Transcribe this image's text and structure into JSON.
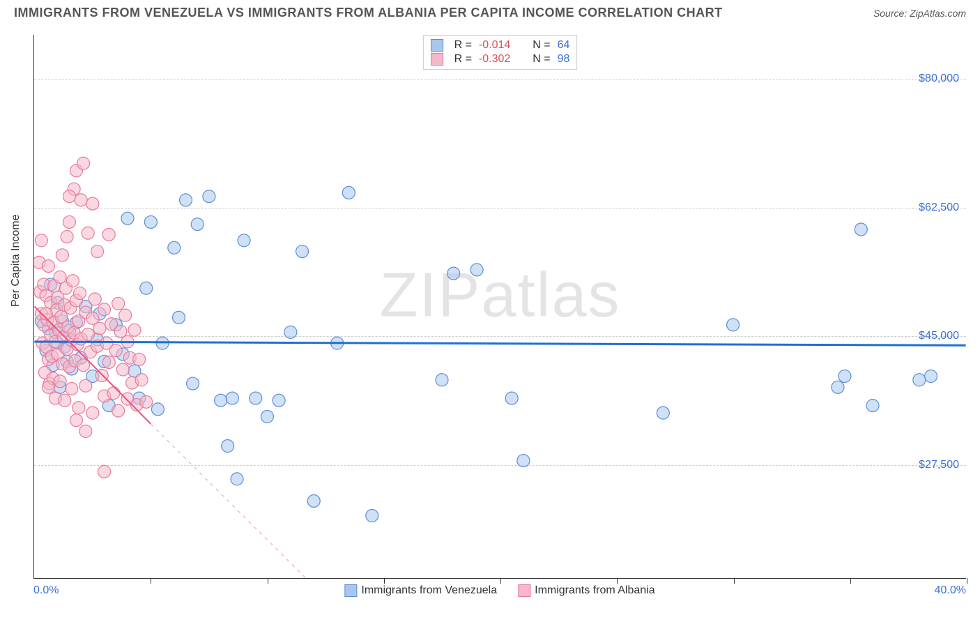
{
  "header": {
    "title": "IMMIGRANTS FROM VENEZUELA VS IMMIGRANTS FROM ALBANIA PER CAPITA INCOME CORRELATION CHART",
    "source": "Source: ZipAtlas.com"
  },
  "chart": {
    "type": "scatter",
    "ylabel": "Per Capita Income",
    "xlim": [
      0,
      40
    ],
    "x_ticks": [
      0,
      5,
      10,
      15,
      20,
      25,
      30,
      35,
      40
    ],
    "x_tick_labels": {
      "left": "0.0%",
      "right": "40.0%"
    },
    "ylim": [
      12000,
      86000
    ],
    "y_gridlines": [
      27500,
      45000,
      62500,
      80000
    ],
    "y_tick_labels": [
      "$27,500",
      "$45,000",
      "$62,500",
      "$80,000"
    ],
    "background_color": "#ffffff",
    "grid_color": "#cccccc",
    "axis_color": "#333333",
    "marker_radius": 9,
    "marker_opacity": 0.55,
    "series": [
      {
        "name": "Immigrants from Venezuela",
        "color_fill": "#a9c7ec",
        "color_stroke": "#5a8fd6",
        "trend": {
          "color": "#1f6fd6",
          "width": 3,
          "x1": 0,
          "y1": 44200,
          "x2": 40,
          "y2": 43700,
          "dash_extend": false
        },
        "R": "-0.014",
        "N": "64",
        "points": [
          [
            0.3,
            47000
          ],
          [
            0.5,
            43000
          ],
          [
            0.6,
            46000
          ],
          [
            0.7,
            52000
          ],
          [
            0.8,
            41000
          ],
          [
            0.9,
            45500
          ],
          [
            1.0,
            44000
          ],
          [
            1.1,
            38000
          ],
          [
            1.2,
            47000
          ],
          [
            1.3,
            43500
          ],
          [
            1.4,
            41500
          ],
          [
            1.5,
            45700
          ],
          [
            1.6,
            40500
          ],
          [
            1.8,
            46800
          ],
          [
            2.0,
            42000
          ],
          [
            2.2,
            49000
          ],
          [
            2.5,
            39500
          ],
          [
            2.7,
            44500
          ],
          [
            3.0,
            41500
          ],
          [
            3.2,
            35500
          ],
          [
            3.5,
            46500
          ],
          [
            3.8,
            42500
          ],
          [
            4.0,
            61000
          ],
          [
            4.3,
            40200
          ],
          [
            4.5,
            36500
          ],
          [
            4.8,
            51500
          ],
          [
            5.0,
            60500
          ],
          [
            5.3,
            35000
          ],
          [
            5.5,
            44000
          ],
          [
            6.0,
            57000
          ],
          [
            6.2,
            47500
          ],
          [
            6.5,
            63500
          ],
          [
            6.8,
            38500
          ],
          [
            7.0,
            60200
          ],
          [
            7.5,
            64000
          ],
          [
            8.0,
            36200
          ],
          [
            8.3,
            30000
          ],
          [
            8.5,
            36500
          ],
          [
            8.7,
            25500
          ],
          [
            9.0,
            58000
          ],
          [
            9.5,
            36500
          ],
          [
            10.0,
            34000
          ],
          [
            10.5,
            36200
          ],
          [
            11.0,
            45500
          ],
          [
            11.5,
            56500
          ],
          [
            12.0,
            22500
          ],
          [
            13.0,
            44000
          ],
          [
            13.5,
            64500
          ],
          [
            14.5,
            20500
          ],
          [
            17.5,
            39000
          ],
          [
            18.0,
            53500
          ],
          [
            19.0,
            54000
          ],
          [
            20.5,
            36500
          ],
          [
            21.0,
            28000
          ],
          [
            27.0,
            34500
          ],
          [
            30.0,
            46500
          ],
          [
            34.5,
            38000
          ],
          [
            34.8,
            39500
          ],
          [
            36.0,
            35500
          ],
          [
            35.5,
            59500
          ],
          [
            38.0,
            39000
          ],
          [
            38.5,
            39500
          ],
          [
            1.0,
            49500
          ],
          [
            2.8,
            48000
          ]
        ]
      },
      {
        "name": "Immigrants from Albania",
        "color_fill": "#f5b8c9",
        "color_stroke": "#e77a9a",
        "trend": {
          "color": "#e75480",
          "width": 2,
          "x1": 0,
          "y1": 49000,
          "x2": 5.0,
          "y2": 33000,
          "dash_extend": true,
          "dash_x2": 14.5,
          "dash_y2": 3000
        },
        "R": "-0.302",
        "N": "98",
        "points": [
          [
            0.2,
            55000
          ],
          [
            0.25,
            51000
          ],
          [
            0.3,
            48000
          ],
          [
            0.3,
            58000
          ],
          [
            0.35,
            44000
          ],
          [
            0.4,
            46500
          ],
          [
            0.4,
            52000
          ],
          [
            0.45,
            40000
          ],
          [
            0.5,
            43500
          ],
          [
            0.5,
            50500
          ],
          [
            0.55,
            47200
          ],
          [
            0.6,
            41800
          ],
          [
            0.6,
            54500
          ],
          [
            0.65,
            38500
          ],
          [
            0.7,
            45000
          ],
          [
            0.7,
            49500
          ],
          [
            0.75,
            42200
          ],
          [
            0.8,
            46800
          ],
          [
            0.8,
            39200
          ],
          [
            0.85,
            51800
          ],
          [
            0.9,
            44200
          ],
          [
            0.9,
            36500
          ],
          [
            0.95,
            48500
          ],
          [
            1.0,
            42500
          ],
          [
            1.0,
            50200
          ],
          [
            1.05,
            45800
          ],
          [
            1.1,
            38800
          ],
          [
            1.1,
            53000
          ],
          [
            1.15,
            47600
          ],
          [
            1.2,
            41200
          ],
          [
            1.2,
            56000
          ],
          [
            1.25,
            44800
          ],
          [
            1.3,
            49200
          ],
          [
            1.3,
            36200
          ],
          [
            1.35,
            51500
          ],
          [
            1.4,
            43200
          ],
          [
            1.4,
            58500
          ],
          [
            1.45,
            46200
          ],
          [
            1.5,
            40800
          ],
          [
            1.5,
            60500
          ],
          [
            1.55,
            48800
          ],
          [
            1.6,
            44400
          ],
          [
            1.6,
            37800
          ],
          [
            1.65,
            52500
          ],
          [
            1.7,
            45400
          ],
          [
            1.7,
            65000
          ],
          [
            1.75,
            41600
          ],
          [
            1.8,
            49800
          ],
          [
            1.8,
            67500
          ],
          [
            1.85,
            43800
          ],
          [
            1.9,
            47000
          ],
          [
            1.9,
            35200
          ],
          [
            1.95,
            50800
          ],
          [
            2.0,
            44600
          ],
          [
            2.0,
            63500
          ],
          [
            2.1,
            41000
          ],
          [
            2.1,
            68500
          ],
          [
            2.2,
            48200
          ],
          [
            2.2,
            38200
          ],
          [
            2.3,
            45200
          ],
          [
            2.3,
            59000
          ],
          [
            2.4,
            42800
          ],
          [
            2.5,
            47400
          ],
          [
            2.5,
            34500
          ],
          [
            2.6,
            50000
          ],
          [
            2.7,
            43600
          ],
          [
            2.7,
            56500
          ],
          [
            2.8,
            46000
          ],
          [
            2.9,
            39600
          ],
          [
            3.0,
            48600
          ],
          [
            3.0,
            36800
          ],
          [
            3.1,
            44000
          ],
          [
            3.2,
            41400
          ],
          [
            3.2,
            58800
          ],
          [
            3.3,
            46600
          ],
          [
            3.4,
            37200
          ],
          [
            3.5,
            43000
          ],
          [
            3.6,
            49400
          ],
          [
            3.6,
            34800
          ],
          [
            3.7,
            45600
          ],
          [
            3.8,
            40400
          ],
          [
            3.9,
            47800
          ],
          [
            4.0,
            36400
          ],
          [
            4.0,
            44200
          ],
          [
            4.1,
            42000
          ],
          [
            4.2,
            38600
          ],
          [
            4.3,
            45800
          ],
          [
            4.4,
            35600
          ],
          [
            4.5,
            41800
          ],
          [
            4.6,
            39000
          ],
          [
            4.8,
            36000
          ],
          [
            3.0,
            26500
          ],
          [
            2.5,
            63000
          ],
          [
            1.5,
            64000
          ],
          [
            0.5,
            48000
          ],
          [
            0.6,
            38000
          ],
          [
            1.8,
            33500
          ],
          [
            2.2,
            32000
          ]
        ]
      }
    ],
    "bottom_legend": [
      {
        "swatch_fill": "#a9c7ec",
        "swatch_stroke": "#5a8fd6",
        "label": "Immigrants from Venezuela"
      },
      {
        "swatch_fill": "#f5b8c9",
        "swatch_stroke": "#e77a9a",
        "label": "Immigrants from Albania"
      }
    ],
    "watermark": {
      "zip": "ZIP",
      "atlas": "atlas"
    }
  }
}
